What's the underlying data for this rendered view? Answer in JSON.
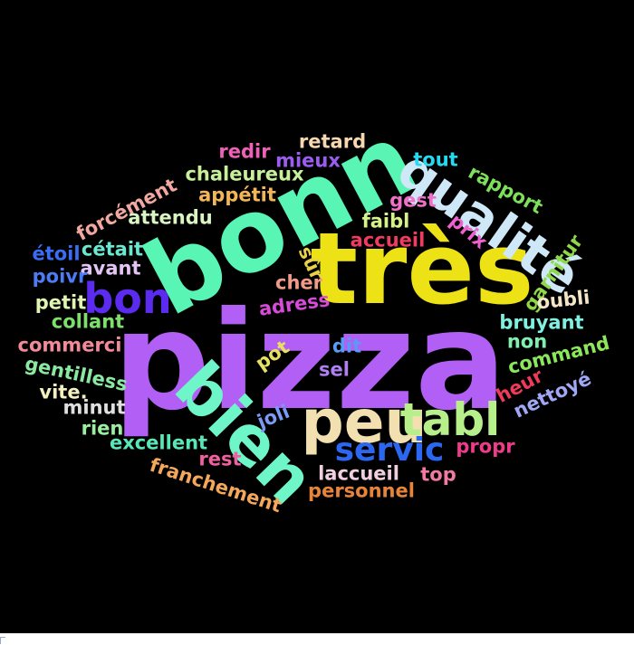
{
  "word_cloud": {
    "words": [
      {
        "text": "pizza",
        "color": "#b25ff5"
      },
      {
        "text": "très",
        "color": "#ede215"
      },
      {
        "text": "bonn",
        "color": "#58f5b5"
      },
      {
        "text": "qualité",
        "color": "#cfe8f7"
      },
      {
        "text": "peu",
        "color": "#f2e0b0"
      },
      {
        "text": "bien",
        "color": "#6ef5c8"
      },
      {
        "text": "bon",
        "color": "#5b2cf0"
      },
      {
        "text": "tabl",
        "color": "#b7f08a"
      },
      {
        "text": "servic",
        "color": "#2b67f0"
      },
      {
        "text": "retard",
        "color": "#f7d7b0"
      },
      {
        "text": "redir",
        "color": "#f060b8"
      },
      {
        "text": "mieux",
        "color": "#9b5cf0"
      },
      {
        "text": "tout",
        "color": "#27d9f0"
      },
      {
        "text": "chaleureux",
        "color": "#c6f09a"
      },
      {
        "text": "rapport",
        "color": "#7ce05a"
      },
      {
        "text": "appétit",
        "color": "#f2b55a"
      },
      {
        "text": "gest",
        "color": "#f06fc8"
      },
      {
        "text": "forcément",
        "color": "#f2a8a0"
      },
      {
        "text": "attendu",
        "color": "#d9f5c4"
      },
      {
        "text": "faibl",
        "color": "#d6f28a"
      },
      {
        "text": "prix",
        "color": "#f060d0"
      },
      {
        "text": "accueil",
        "color": "#f03c60"
      },
      {
        "text": "étoil",
        "color": "#3b6cf5"
      },
      {
        "text": "cétait",
        "color": "#6ae8d0"
      },
      {
        "text": "garnitur",
        "color": "#8ed84a"
      },
      {
        "text": "avant",
        "color": "#e3c4f5"
      },
      {
        "text": "sûr",
        "color": "#e8d04a"
      },
      {
        "text": "poivr",
        "color": "#4b7cf5"
      },
      {
        "text": "cher",
        "color": "#f29a8a"
      },
      {
        "text": "oubli",
        "color": "#f5e6c8"
      },
      {
        "text": "petit",
        "color": "#e0f5b0"
      },
      {
        "text": "adress",
        "color": "#d84ad8"
      },
      {
        "text": "collant",
        "color": "#7ce06a"
      },
      {
        "text": "bruyant",
        "color": "#80f0e0"
      },
      {
        "text": "commerci",
        "color": "#f28a98"
      },
      {
        "text": "dit",
        "color": "#5a9af5"
      },
      {
        "text": "non",
        "color": "#80f0b0"
      },
      {
        "text": "pot",
        "color": "#e8e060"
      },
      {
        "text": "command",
        "color": "#8ae85a"
      },
      {
        "text": "gentilless",
        "color": "#8ae8a0"
      },
      {
        "text": "sel",
        "color": "#b080f0"
      },
      {
        "text": "vite.",
        "color": "#f5f0c0"
      },
      {
        "text": "heur",
        "color": "#f03a5a"
      },
      {
        "text": "minut",
        "color": "#e0e0e0"
      },
      {
        "text": "nettoyé",
        "color": "#a0a8f5"
      },
      {
        "text": "joli",
        "color": "#7a9af5"
      },
      {
        "text": "rien",
        "color": "#9af0a0"
      },
      {
        "text": "excellent",
        "color": "#58e8b8"
      },
      {
        "text": "propr",
        "color": "#f03a8a"
      },
      {
        "text": "rest",
        "color": "#f060a0"
      },
      {
        "text": "franchement",
        "color": "#f5a85a"
      },
      {
        "text": "laccueil",
        "color": "#f0d0e0"
      },
      {
        "text": "top",
        "color": "#f07aa0"
      },
      {
        "text": "personnel",
        "color": "#e8843a"
      }
    ]
  }
}
